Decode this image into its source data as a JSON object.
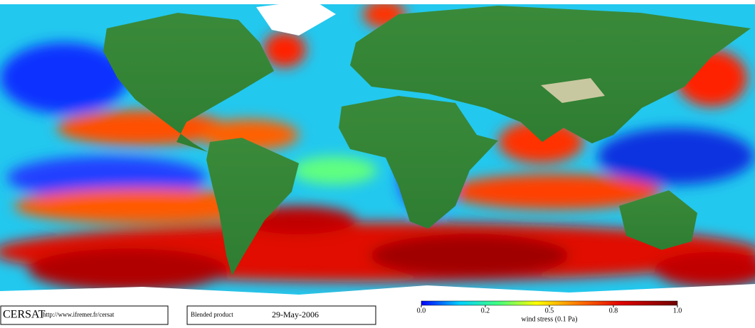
{
  "footer": {
    "logo": "CERSAT",
    "url": "http://www.ifremer.fr/cersat",
    "product": "Blended product",
    "date": "29-May-2006"
  },
  "colorbar": {
    "label": "wind stress (0.1 Pa)",
    "ticks": [
      {
        "value": 0,
        "label": "0.0"
      },
      {
        "value": 0.2,
        "label": "0.2"
      },
      {
        "value": 0.5,
        "label": "0.5"
      },
      {
        "value": 0.8,
        "label": "0.8"
      },
      {
        "value": 1,
        "label": "1.0"
      }
    ]
  }
}
